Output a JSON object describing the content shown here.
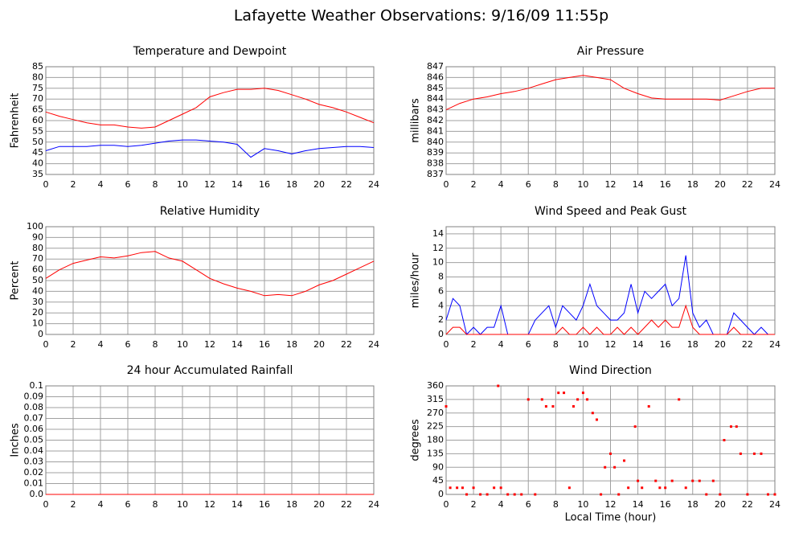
{
  "title": "Lafayette Weather Observations: 9/16/09 11:55p",
  "chart_data": [
    {
      "type": "line",
      "title": "Temperature and Dewpoint",
      "ylabel": "Fahrenheit",
      "x": [
        0,
        1,
        2,
        3,
        4,
        5,
        6,
        7,
        8,
        9,
        10,
        11,
        12,
        13,
        14,
        15,
        16,
        17,
        18,
        19,
        20,
        21,
        22,
        23,
        24
      ],
      "series": [
        {
          "color": "#ff0000",
          "values": [
            64,
            62,
            60.5,
            59,
            58,
            58,
            57,
            56.5,
            57,
            60,
            63,
            66,
            71,
            73,
            74.5,
            74.5,
            75,
            74,
            72,
            70,
            67.5,
            66,
            64,
            61.5,
            59
          ]
        },
        {
          "color": "#0000ff",
          "values": [
            46,
            48,
            48,
            48,
            48.5,
            48.5,
            48,
            48.5,
            49.5,
            50.5,
            51,
            51,
            50.5,
            50,
            49,
            43,
            47,
            46,
            44.5,
            46,
            47,
            47.5,
            48,
            48,
            47.5
          ]
        }
      ],
      "xlim": [
        0,
        24
      ],
      "xticks": [
        0,
        2,
        4,
        6,
        8,
        10,
        12,
        14,
        16,
        18,
        20,
        22,
        24
      ],
      "ylim": [
        35,
        85
      ],
      "yticks": [
        35,
        40,
        45,
        50,
        55,
        60,
        65,
        70,
        75,
        80,
        85
      ],
      "grid": true
    },
    {
      "type": "line",
      "title": "Air Pressure",
      "ylabel": "millibars",
      "x": [
        0,
        1,
        2,
        3,
        4,
        5,
        6,
        7,
        8,
        9,
        10,
        11,
        12,
        13,
        14,
        15,
        16,
        17,
        18,
        19,
        20,
        21,
        22,
        23,
        24
      ],
      "series": [
        {
          "color": "#ff0000",
          "values": [
            843,
            843.6,
            844,
            844.2,
            844.5,
            844.7,
            845,
            845.4,
            845.8,
            846,
            846.2,
            846,
            845.8,
            845,
            844.5,
            844.1,
            844,
            844,
            844,
            844,
            843.9,
            844.3,
            844.7,
            845,
            845
          ]
        }
      ],
      "xlim": [
        0,
        24
      ],
      "xticks": [
        0,
        2,
        4,
        6,
        8,
        10,
        12,
        14,
        16,
        18,
        20,
        22,
        24
      ],
      "ylim": [
        837,
        847
      ],
      "yticks": [
        837,
        838,
        839,
        840,
        841,
        842,
        843,
        844,
        845,
        846,
        847
      ],
      "grid": true
    },
    {
      "type": "line",
      "title": "Relative Humidity",
      "ylabel": "Percent",
      "x": [
        0,
        1,
        2,
        3,
        4,
        5,
        6,
        7,
        8,
        9,
        10,
        11,
        12,
        13,
        14,
        15,
        16,
        17,
        18,
        19,
        20,
        21,
        22,
        23,
        24
      ],
      "series": [
        {
          "color": "#ff0000",
          "values": [
            52,
            60,
            66,
            69,
            72,
            71,
            73,
            76,
            77,
            71,
            68,
            60,
            52,
            47,
            43,
            40,
            36,
            37,
            36,
            40,
            46,
            50,
            56,
            62,
            68
          ]
        }
      ],
      "xlim": [
        0,
        24
      ],
      "xticks": [
        0,
        2,
        4,
        6,
        8,
        10,
        12,
        14,
        16,
        18,
        20,
        22,
        24
      ],
      "ylim": [
        0,
        100
      ],
      "yticks": [
        0,
        10,
        20,
        30,
        40,
        50,
        60,
        70,
        80,
        90,
        100
      ],
      "grid": true
    },
    {
      "type": "line",
      "title": "Wind Speed and Peak Gust",
      "ylabel": "miles/hour",
      "x": [
        0,
        0.5,
        1,
        1.5,
        2,
        2.5,
        3,
        3.5,
        4,
        4.5,
        5,
        5.5,
        6,
        6.5,
        7,
        7.5,
        8,
        8.5,
        9,
        9.5,
        10,
        10.5,
        11,
        11.5,
        12,
        12.5,
        13,
        13.5,
        14,
        14.5,
        15,
        15.5,
        16,
        16.5,
        17,
        17.5,
        18,
        18.5,
        19,
        19.5,
        20,
        20.5,
        21,
        21.5,
        22,
        22.5,
        23,
        23.5,
        24
      ],
      "series": [
        {
          "color": "#0000ff",
          "values": [
            2,
            5,
            4,
            0,
            1,
            0,
            1,
            1,
            4,
            0,
            0,
            0,
            0,
            2,
            3,
            4,
            1,
            4,
            3,
            2,
            4,
            7,
            4,
            3,
            2,
            2,
            3,
            7,
            3,
            6,
            5,
            6,
            7,
            4,
            5,
            11,
            3,
            1,
            2,
            0,
            0,
            0,
            3,
            2,
            1,
            0,
            1,
            0,
            0
          ]
        },
        {
          "color": "#ff0000",
          "values": [
            0,
            1,
            1,
            0,
            0,
            0,
            0,
            0,
            0,
            0,
            0,
            0,
            0,
            0,
            0,
            0,
            0,
            1,
            0,
            0,
            1,
            0,
            1,
            0,
            0,
            1,
            0,
            1,
            0,
            1,
            2,
            1,
            2,
            1,
            1,
            4,
            1,
            0,
            0,
            0,
            0,
            0,
            1,
            0,
            0,
            0,
            0,
            0,
            0
          ]
        }
      ],
      "xlim": [
        0,
        24
      ],
      "xticks": [
        0,
        2,
        4,
        6,
        8,
        10,
        12,
        14,
        16,
        18,
        20,
        22,
        24
      ],
      "ylim": [
        0,
        15
      ],
      "yticks": [
        0,
        2,
        4,
        6,
        8,
        10,
        12,
        14
      ],
      "grid": true
    },
    {
      "type": "line",
      "title": "24 hour Accumulated Rainfall",
      "ylabel": "Inches",
      "x": [
        0,
        24
      ],
      "series": [
        {
          "color": "#ff0000",
          "values": [
            0,
            0
          ]
        }
      ],
      "xlim": [
        0,
        24
      ],
      "xticks": [
        0,
        2,
        4,
        6,
        8,
        10,
        12,
        14,
        16,
        18,
        20,
        22,
        24
      ],
      "ylim": [
        0,
        0.1
      ],
      "yticks": [
        {
          "value": 0,
          "label": "0.0"
        },
        0.01,
        0.02,
        0.03,
        0.04,
        0.05,
        0.06,
        0.07,
        0.08,
        0.09,
        0.1
      ],
      "grid": true
    },
    {
      "type": "scatter",
      "title": "Wind Direction",
      "ylabel": "degrees",
      "xlabel": "Local Time (hour)",
      "x": [
        0,
        0.3,
        0.8,
        1.2,
        1.5,
        2,
        2.5,
        3,
        3.5,
        3.8,
        4,
        4.5,
        5,
        5.5,
        6,
        6.5,
        7,
        7.3,
        7.8,
        8.2,
        8.6,
        9,
        9.3,
        9.6,
        10,
        10.3,
        10.7,
        11,
        11.3,
        11.6,
        12,
        12.3,
        12.6,
        13,
        13.3,
        13.8,
        14,
        14.3,
        14.8,
        15.3,
        15.6,
        16,
        16.5,
        17,
        17.5,
        18,
        18.5,
        19,
        19.5,
        20,
        20.3,
        20.8,
        21.2,
        21.5,
        22,
        22.5,
        23,
        23.5,
        24
      ],
      "color": "#ff0000",
      "values": [
        292,
        22,
        22,
        22,
        0,
        22,
        0,
        0,
        22,
        360,
        22,
        0,
        0,
        0,
        315,
        0,
        315,
        292,
        292,
        337,
        337,
        22,
        292,
        315,
        337,
        315,
        270,
        248,
        0,
        90,
        135,
        90,
        0,
        112,
        22,
        225,
        45,
        22,
        292,
        45,
        22,
        22,
        45,
        315,
        22,
        45,
        45,
        0,
        45,
        0,
        180,
        225,
        225,
        135,
        0,
        135,
        135,
        0,
        0
      ],
      "xlim": [
        0,
        24
      ],
      "xticks": [
        0,
        2,
        4,
        6,
        8,
        10,
        12,
        14,
        16,
        18,
        20,
        22,
        24
      ],
      "ylim": [
        0,
        360
      ],
      "yticks": [
        0,
        45,
        90,
        135,
        180,
        225,
        270,
        315,
        360
      ],
      "grid": true
    }
  ]
}
